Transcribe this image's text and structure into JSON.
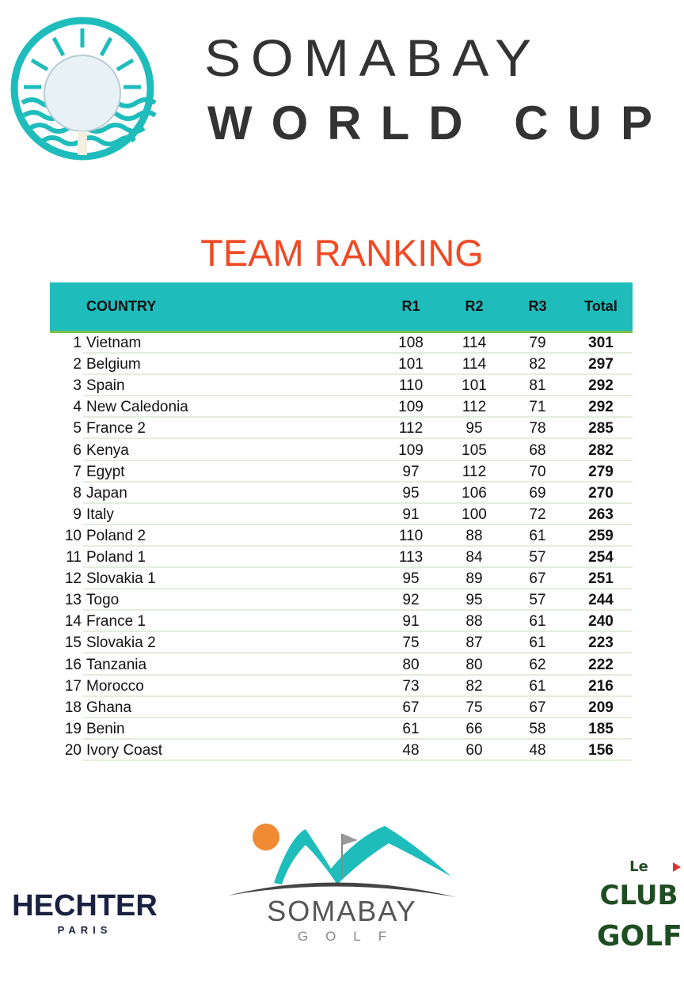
{
  "header": {
    "title_line1": "SOMABAY",
    "title_line2": "WORLD CUP"
  },
  "ranking_title": "TEAM RANKING",
  "columns": {
    "country": "COUNTRY",
    "r1": "R1",
    "r2": "R2",
    "r3": "R3",
    "total": "Total"
  },
  "rows": [
    {
      "rank": "1",
      "country": "Vietnam",
      "r1": "108",
      "r2": "114",
      "r3": "79",
      "total": "301"
    },
    {
      "rank": "2",
      "country": "Belgium",
      "r1": "101",
      "r2": "114",
      "r3": "82",
      "total": "297"
    },
    {
      "rank": "3",
      "country": "Spain",
      "r1": "110",
      "r2": "101",
      "r3": "81",
      "total": "292"
    },
    {
      "rank": "4",
      "country": "New Caledonia",
      "r1": "109",
      "r2": "112",
      "r3": "71",
      "total": "292"
    },
    {
      "rank": "5",
      "country": "France 2",
      "r1": "112",
      "r2": "95",
      "r3": "78",
      "total": "285"
    },
    {
      "rank": "6",
      "country": "Kenya",
      "r1": "109",
      "r2": "105",
      "r3": "68",
      "total": "282"
    },
    {
      "rank": "7",
      "country": "Egypt",
      "r1": "97",
      "r2": "112",
      "r3": "70",
      "total": "279"
    },
    {
      "rank": "8",
      "country": "Japan",
      "r1": "95",
      "r2": "106",
      "r3": "69",
      "total": "270"
    },
    {
      "rank": "9",
      "country": "Italy",
      "r1": "91",
      "r2": "100",
      "r3": "72",
      "total": "263"
    },
    {
      "rank": "10",
      "country": "Poland 2",
      "r1": "110",
      "r2": "88",
      "r3": "61",
      "total": "259"
    },
    {
      "rank": "11",
      "country": "Poland 1",
      "r1": "113",
      "r2": "84",
      "r3": "57",
      "total": "254"
    },
    {
      "rank": "12",
      "country": "Slovakia 1",
      "r1": "95",
      "r2": "89",
      "r3": "67",
      "total": "251"
    },
    {
      "rank": "13",
      "country": "Togo",
      "r1": "92",
      "r2": "95",
      "r3": "57",
      "total": "244"
    },
    {
      "rank": "14",
      "country": "France 1",
      "r1": "91",
      "r2": "88",
      "r3": "61",
      "total": "240"
    },
    {
      "rank": "15",
      "country": "Slovakia 2",
      "r1": "75",
      "r2": "87",
      "r3": "61",
      "total": "223"
    },
    {
      "rank": "16",
      "country": "Tanzania",
      "r1": "80",
      "r2": "80",
      "r3": "62",
      "total": "222"
    },
    {
      "rank": "17",
      "country": "Morocco",
      "r1": "73",
      "r2": "82",
      "r3": "61",
      "total": "216"
    },
    {
      "rank": "18",
      "country": "Ghana",
      "r1": "67",
      "r2": "75",
      "r3": "67",
      "total": "209"
    },
    {
      "rank": "19",
      "country": "Benin",
      "r1": "61",
      "r2": "66",
      "r3": "58",
      "total": "185"
    },
    {
      "rank": "20",
      "country": "Ivory Coast",
      "r1": "48",
      "r2": "60",
      "r3": "48",
      "total": "156"
    }
  ],
  "sponsors": {
    "hechter": {
      "name": "HECHTER",
      "sub": "PARIS"
    },
    "somabay_golf": {
      "name": "SOMABAY",
      "sub": "GOLF"
    },
    "club_golf": {
      "line1": "Le",
      "line2": "CLUB",
      "line3": "GOLF"
    }
  },
  "colors": {
    "accent_teal": "#1fbcbc",
    "title_orange": "#f04a24",
    "header_rule_green": "#7cc14a",
    "club_green": "#1f4d22"
  }
}
